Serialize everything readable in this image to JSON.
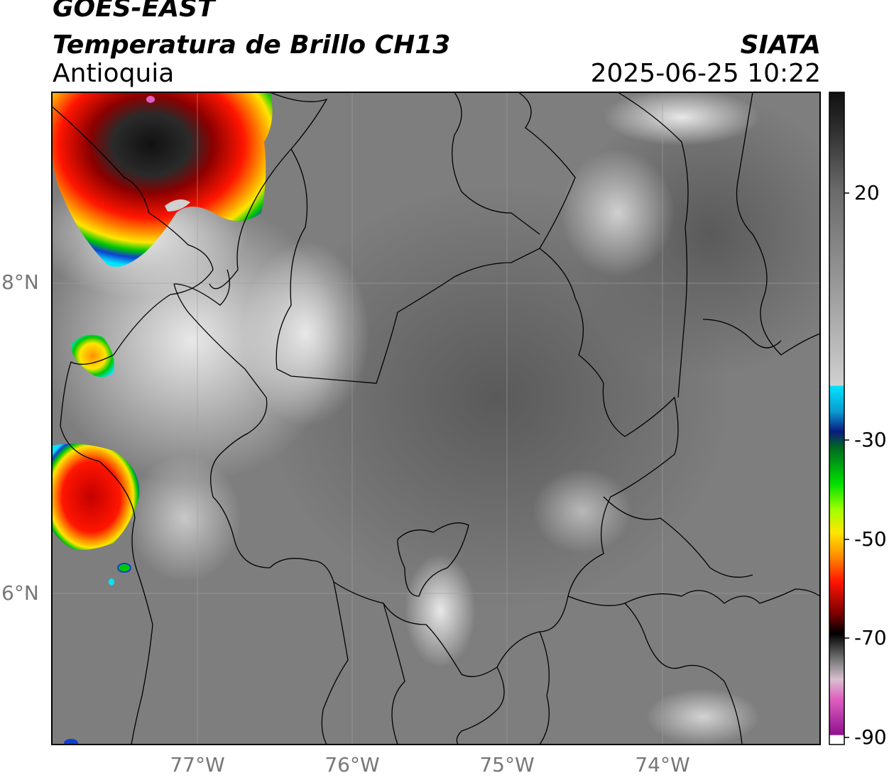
{
  "header": {
    "satellite": "GOES-EAST",
    "product": "Temperatura de Brillo CH13",
    "region": "Antioquia",
    "agency": "SIATA",
    "datetime": "2025-06-25 10:22"
  },
  "map": {
    "lon_range": [
      -77.95,
      -72.99
    ],
    "lat_range": [
      4.9,
      9.1
    ],
    "lat_labels": [
      {
        "value": 8,
        "text": "8°N"
      },
      {
        "value": 6,
        "text": "6°N"
      }
    ],
    "lon_labels": [
      {
        "value": -77,
        "text": "77°W"
      },
      {
        "value": -76,
        "text": "76°W"
      },
      {
        "value": -75,
        "text": "75°W"
      },
      {
        "value": -74,
        "text": "74°W"
      }
    ],
    "gridlines": true
  },
  "colorbar": {
    "range": [
      -90,
      30
    ],
    "ticks": [
      {
        "value": 20,
        "text": "20"
      },
      {
        "value": -30,
        "text": "-30"
      },
      {
        "value": -50,
        "text": "-50"
      },
      {
        "value": -70,
        "text": "-70"
      },
      {
        "value": -90,
        "text": "-90"
      }
    ],
    "colors": {
      "grey_scale": [
        "#f4f4f4",
        "#bdbdbd",
        "#8a8a8a",
        "#555555",
        "#111111"
      ],
      "cyan": "#00e5ff",
      "blue": "#1040d0",
      "navy": "#0a1a80",
      "green": "#00c800",
      "lime": "#a0ff00",
      "yellow": "#ffe600",
      "orange": "#ff9000",
      "red": "#ff1500",
      "darkred": "#8a0000",
      "black": "#000000",
      "pink": "#e060c0",
      "purple": "#901090"
    }
  }
}
